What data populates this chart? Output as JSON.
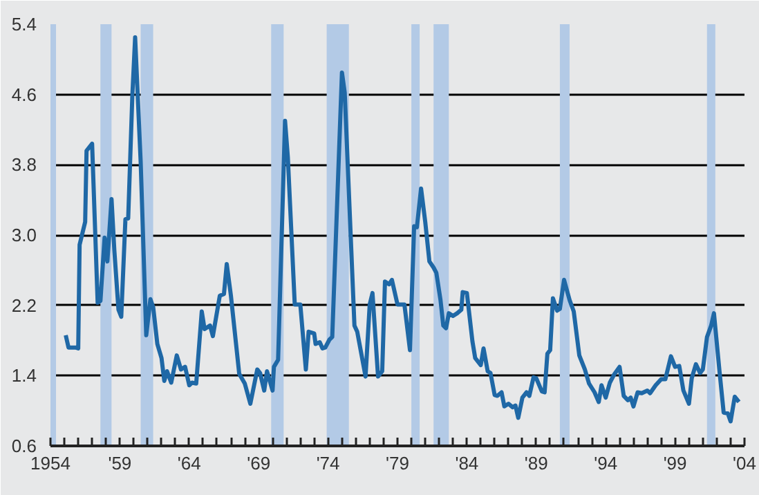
{
  "chart_data": {
    "type": "line",
    "x": [
      1955.1,
      1955.3,
      1955.8,
      1956.0,
      1956.1,
      1956.5,
      1956.6,
      1957.0,
      1957.4,
      1957.6,
      1957.9,
      1958.1,
      1958.4,
      1958.6,
      1958.9,
      1959.1,
      1959.4,
      1959.6,
      1959.9,
      1960.1,
      1960.5,
      1960.9,
      1961.2,
      1961.4,
      1961.7,
      1962.0,
      1962.2,
      1962.4,
      1962.7,
      1963.1,
      1963.4,
      1963.7,
      1964.0,
      1964.2,
      1964.5,
      1964.9,
      1965.1,
      1965.5,
      1965.7,
      1966.2,
      1966.5,
      1966.7,
      1967.0,
      1967.6,
      1968.0,
      1968.4,
      1968.9,
      1969.1,
      1969.4,
      1969.6,
      1970.0,
      1970.1,
      1970.4,
      1970.9,
      1971.1,
      1971.6,
      1972.0,
      1972.4,
      1972.6,
      1973.0,
      1973.1,
      1973.4,
      1973.6,
      1973.8,
      1974.1,
      1974.3,
      1975.0,
      1975.2,
      1975.9,
      1976.1,
      1976.7,
      1977.0,
      1977.2,
      1977.6,
      1977.9,
      1978.1,
      1978.4,
      1978.6,
      1978.8,
      1979.0,
      1979.5,
      1979.9,
      1980.2,
      1980.4,
      1980.7,
      1981.0,
      1981.3,
      1981.6,
      1981.8,
      1982.1,
      1982.3,
      1982.5,
      1982.7,
      1983.0,
      1983.3,
      1983.6,
      1983.7,
      1984.0,
      1984.4,
      1984.6,
      1985.0,
      1985.2,
      1985.5,
      1985.7,
      1986.0,
      1986.2,
      1986.5,
      1986.7,
      1987.0,
      1987.3,
      1987.5,
      1987.7,
      1988.0,
      1988.3,
      1988.5,
      1988.8,
      1989.0,
      1989.4,
      1989.6,
      1989.8,
      1990.0,
      1990.2,
      1990.5,
      1990.7,
      1991.0,
      1991.4,
      1991.7,
      1992.1,
      1992.5,
      1992.8,
      1993.2,
      1993.5,
      1993.7,
      1994.0,
      1994.3,
      1994.6,
      1995.0,
      1995.3,
      1995.6,
      1995.8,
      1996.0,
      1996.3,
      1996.6,
      1997.0,
      1997.2,
      1997.6,
      1998.0,
      1998.3,
      1998.7,
      1999.0,
      1999.3,
      1999.6,
      2000.0,
      2000.2,
      2000.5,
      2000.8,
      2001.0,
      2001.3,
      2001.6,
      2001.8,
      2002.2,
      2002.5,
      2002.8,
      2003.0,
      2003.3,
      2003.6
    ],
    "series": [
      {
        "color": "#1f68a6",
        "values": [
          1.86,
          1.72,
          1.72,
          1.71,
          2.89,
          3.15,
          3.96,
          4.04,
          2.23,
          2.25,
          2.97,
          2.7,
          3.41,
          2.83,
          2.15,
          2.07,
          3.18,
          3.19,
          4.59,
          5.25,
          3.83,
          1.86,
          2.27,
          2.18,
          1.76,
          1.6,
          1.34,
          1.45,
          1.32,
          1.63,
          1.47,
          1.5,
          1.29,
          1.32,
          1.31,
          2.13,
          1.93,
          1.97,
          1.85,
          2.31,
          2.33,
          2.67,
          2.31,
          1.42,
          1.31,
          1.08,
          1.47,
          1.43,
          1.23,
          1.45,
          1.23,
          1.5,
          1.58,
          4.3,
          3.89,
          2.21,
          2.21,
          1.47,
          1.9,
          1.88,
          1.76,
          1.78,
          1.71,
          1.72,
          1.81,
          1.84,
          4.85,
          4.62,
          1.97,
          1.9,
          1.39,
          2.21,
          2.34,
          1.39,
          1.45,
          2.47,
          2.44,
          2.49,
          2.35,
          2.21,
          2.21,
          1.69,
          3.1,
          3.09,
          3.53,
          3.15,
          2.7,
          2.63,
          2.57,
          2.26,
          1.97,
          1.94,
          2.11,
          2.08,
          2.11,
          2.15,
          2.35,
          2.34,
          1.79,
          1.6,
          1.52,
          1.71,
          1.45,
          1.43,
          1.18,
          1.17,
          1.21,
          1.05,
          1.08,
          1.04,
          1.06,
          0.92,
          1.15,
          1.21,
          1.17,
          1.38,
          1.37,
          1.22,
          1.21,
          1.65,
          1.69,
          2.28,
          2.14,
          2.16,
          2.49,
          2.26,
          2.13,
          1.63,
          1.47,
          1.31,
          1.21,
          1.1,
          1.29,
          1.15,
          1.32,
          1.41,
          1.5,
          1.17,
          1.12,
          1.15,
          1.05,
          1.21,
          1.2,
          1.23,
          1.2,
          1.29,
          1.36,
          1.36,
          1.62,
          1.5,
          1.51,
          1.23,
          1.08,
          1.37,
          1.53,
          1.43,
          1.47,
          1.84,
          1.97,
          2.11,
          1.45,
          0.98,
          0.97,
          0.88,
          1.16,
          1.1
        ]
      }
    ],
    "xlim": [
      1954,
      2004
    ],
    "ylim": [
      0.6,
      5.4
    ],
    "yticks": [
      0.6,
      1.4,
      2.2,
      {
        "value": 3,
        "label": "3.0"
      },
      3.8,
      4.6,
      5.4
    ],
    "xticks": [
      {
        "value": 1954,
        "label": "1954"
      },
      {
        "value": 1955,
        "label": null
      },
      {
        "value": 1956,
        "label": null
      },
      {
        "value": 1957,
        "label": null
      },
      {
        "value": 1958,
        "label": null
      },
      {
        "value": 1959,
        "label": "'59"
      },
      {
        "value": 1960,
        "label": null
      },
      {
        "value": 1961,
        "label": null
      },
      {
        "value": 1962,
        "label": null
      },
      {
        "value": 1963,
        "label": null
      },
      {
        "value": 1964,
        "label": "'64"
      },
      {
        "value": 1965,
        "label": null
      },
      {
        "value": 1966,
        "label": null
      },
      {
        "value": 1967,
        "label": null
      },
      {
        "value": 1968,
        "label": null
      },
      {
        "value": 1969,
        "label": "'69"
      },
      {
        "value": 1970,
        "label": null
      },
      {
        "value": 1971,
        "label": null
      },
      {
        "value": 1972,
        "label": null
      },
      {
        "value": 1973,
        "label": null
      },
      {
        "value": 1974,
        "label": "'74"
      },
      {
        "value": 1975,
        "label": null
      },
      {
        "value": 1976,
        "label": null
      },
      {
        "value": 1977,
        "label": null
      },
      {
        "value": 1978,
        "label": null
      },
      {
        "value": 1979,
        "label": "'79"
      },
      {
        "value": 1980,
        "label": null
      },
      {
        "value": 1981,
        "label": null
      },
      {
        "value": 1982,
        "label": null
      },
      {
        "value": 1983,
        "label": null
      },
      {
        "value": 1984,
        "label": "'84"
      },
      {
        "value": 1985,
        "label": null
      },
      {
        "value": 1986,
        "label": null
      },
      {
        "value": 1987,
        "label": null
      },
      {
        "value": 1988,
        "label": null
      },
      {
        "value": 1989,
        "label": "'89"
      },
      {
        "value": 1990,
        "label": null
      },
      {
        "value": 1991,
        "label": null
      },
      {
        "value": 1992,
        "label": null
      },
      {
        "value": 1993,
        "label": null
      },
      {
        "value": 1994,
        "label": "'94"
      },
      {
        "value": 1995,
        "label": null
      },
      {
        "value": 1996,
        "label": null
      },
      {
        "value": 1997,
        "label": null
      },
      {
        "value": 1998,
        "label": null
      },
      {
        "value": 1999,
        "label": "'99"
      },
      {
        "value": 2000,
        "label": null
      },
      {
        "value": 2001,
        "label": null
      },
      {
        "value": 2002,
        "label": null
      },
      {
        "value": 2003,
        "label": null
      },
      {
        "value": 2004,
        "label": "'04"
      }
    ],
    "bands": [
      {
        "axis": "x",
        "from": 1954.0,
        "to": 1954.4,
        "color": "#b3cae6"
      },
      {
        "axis": "x",
        "from": 1957.6,
        "to": 1958.4,
        "color": "#b3cae6"
      },
      {
        "axis": "x",
        "from": 1960.5,
        "to": 1961.4,
        "color": "#b3cae6"
      },
      {
        "axis": "x",
        "from": 1969.9,
        "to": 1970.8,
        "color": "#b3cae6"
      },
      {
        "axis": "x",
        "from": 1973.9,
        "to": 1975.5,
        "color": "#b3cae6"
      },
      {
        "axis": "x",
        "from": 1980.0,
        "to": 1980.6,
        "color": "#b3cae6"
      },
      {
        "axis": "x",
        "from": 1981.6,
        "to": 1982.7,
        "color": "#b3cae6"
      },
      {
        "axis": "x",
        "from": 1990.7,
        "to": 1991.4,
        "color": "#b3cae6"
      },
      {
        "axis": "x",
        "from": 2001.3,
        "to": 2001.9,
        "color": "#b3cae6"
      }
    ],
    "grid": "y",
    "line_style": "solid"
  }
}
